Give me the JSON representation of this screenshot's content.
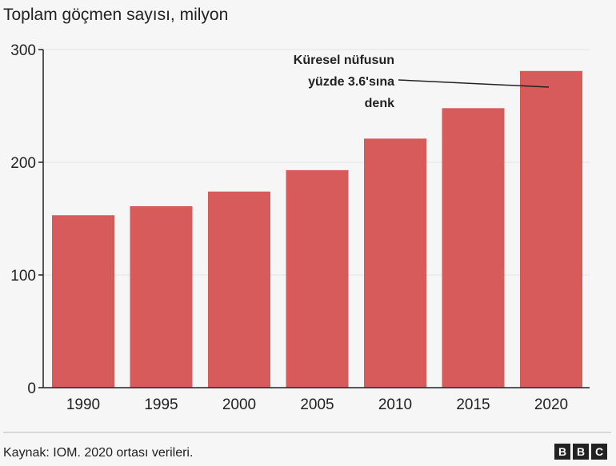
{
  "chart_data": {
    "type": "bar",
    "title": "Toplam göçmen sayısı, milyon",
    "categories": [
      "1990",
      "1995",
      "2000",
      "2005",
      "2010",
      "2015",
      "2020"
    ],
    "values": [
      153,
      161,
      174,
      193,
      221,
      248,
      281
    ],
    "ylim": [
      0,
      300
    ],
    "yticks": [
      "0",
      "100",
      "200",
      "300"
    ],
    "grid": true,
    "bar_color": "#d65b5a",
    "annotation": {
      "lines": [
        "Küresel nüfusun",
        "yüzde 3.6'sına",
        "denk"
      ],
      "target": "2020"
    }
  },
  "source": "Kaynak: IOM. 2020 ortası verileri.",
  "logo": "BBC"
}
